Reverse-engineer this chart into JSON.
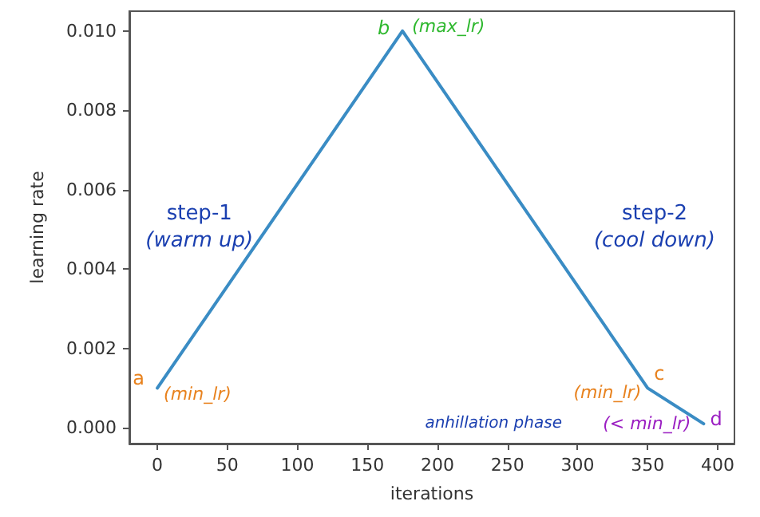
{
  "chart_data": {
    "type": "line",
    "xlabel": "iterations",
    "ylabel": "learning rate",
    "x": [
      0,
      175,
      350,
      390
    ],
    "series": [
      {
        "color": "#3a8cc4",
        "values": [
          0.001,
          0.01,
          0.001,
          0.0001
        ]
      }
    ],
    "xlim": [
      -20,
      412
    ],
    "xticks": [
      0,
      50,
      100,
      150,
      200,
      250,
      300,
      350,
      400
    ],
    "ylim": [
      -0.0004,
      0.0105
    ],
    "yticks": [
      {
        "value": 0,
        "label": "0.000"
      },
      {
        "value": 0.002,
        "label": "0.002"
      },
      {
        "value": 0.004,
        "label": "0.004"
      },
      {
        "value": 0.006,
        "label": "0.006"
      },
      {
        "value": 0.008,
        "label": "0.008"
      },
      {
        "value": 0.01,
        "label": "0.010"
      }
    ],
    "grid": false,
    "marker": "none",
    "line_style": "solid",
    "annotations": [
      {
        "text": "a",
        "x": 0,
        "y": 0.001
      },
      {
        "text": "(min_lr)",
        "x": 0,
        "y": 0.001
      },
      {
        "text": "b",
        "x": 175,
        "y": 0.01
      },
      {
        "text": "(max_lr)",
        "x": 175,
        "y": 0.01
      },
      {
        "text": "c",
        "x": 350,
        "y": 0.001
      },
      {
        "text": "(min_lr)",
        "x": 350,
        "y": 0.001
      },
      {
        "text": "d",
        "x": 390,
        "y": 0.0001
      },
      {
        "text": "(< min_lr)",
        "x": 390,
        "y": 0.0001
      },
      "step-1",
      "(warm up)",
      "step-2",
      "(cool down)",
      "anhillation phase"
    ]
  }
}
